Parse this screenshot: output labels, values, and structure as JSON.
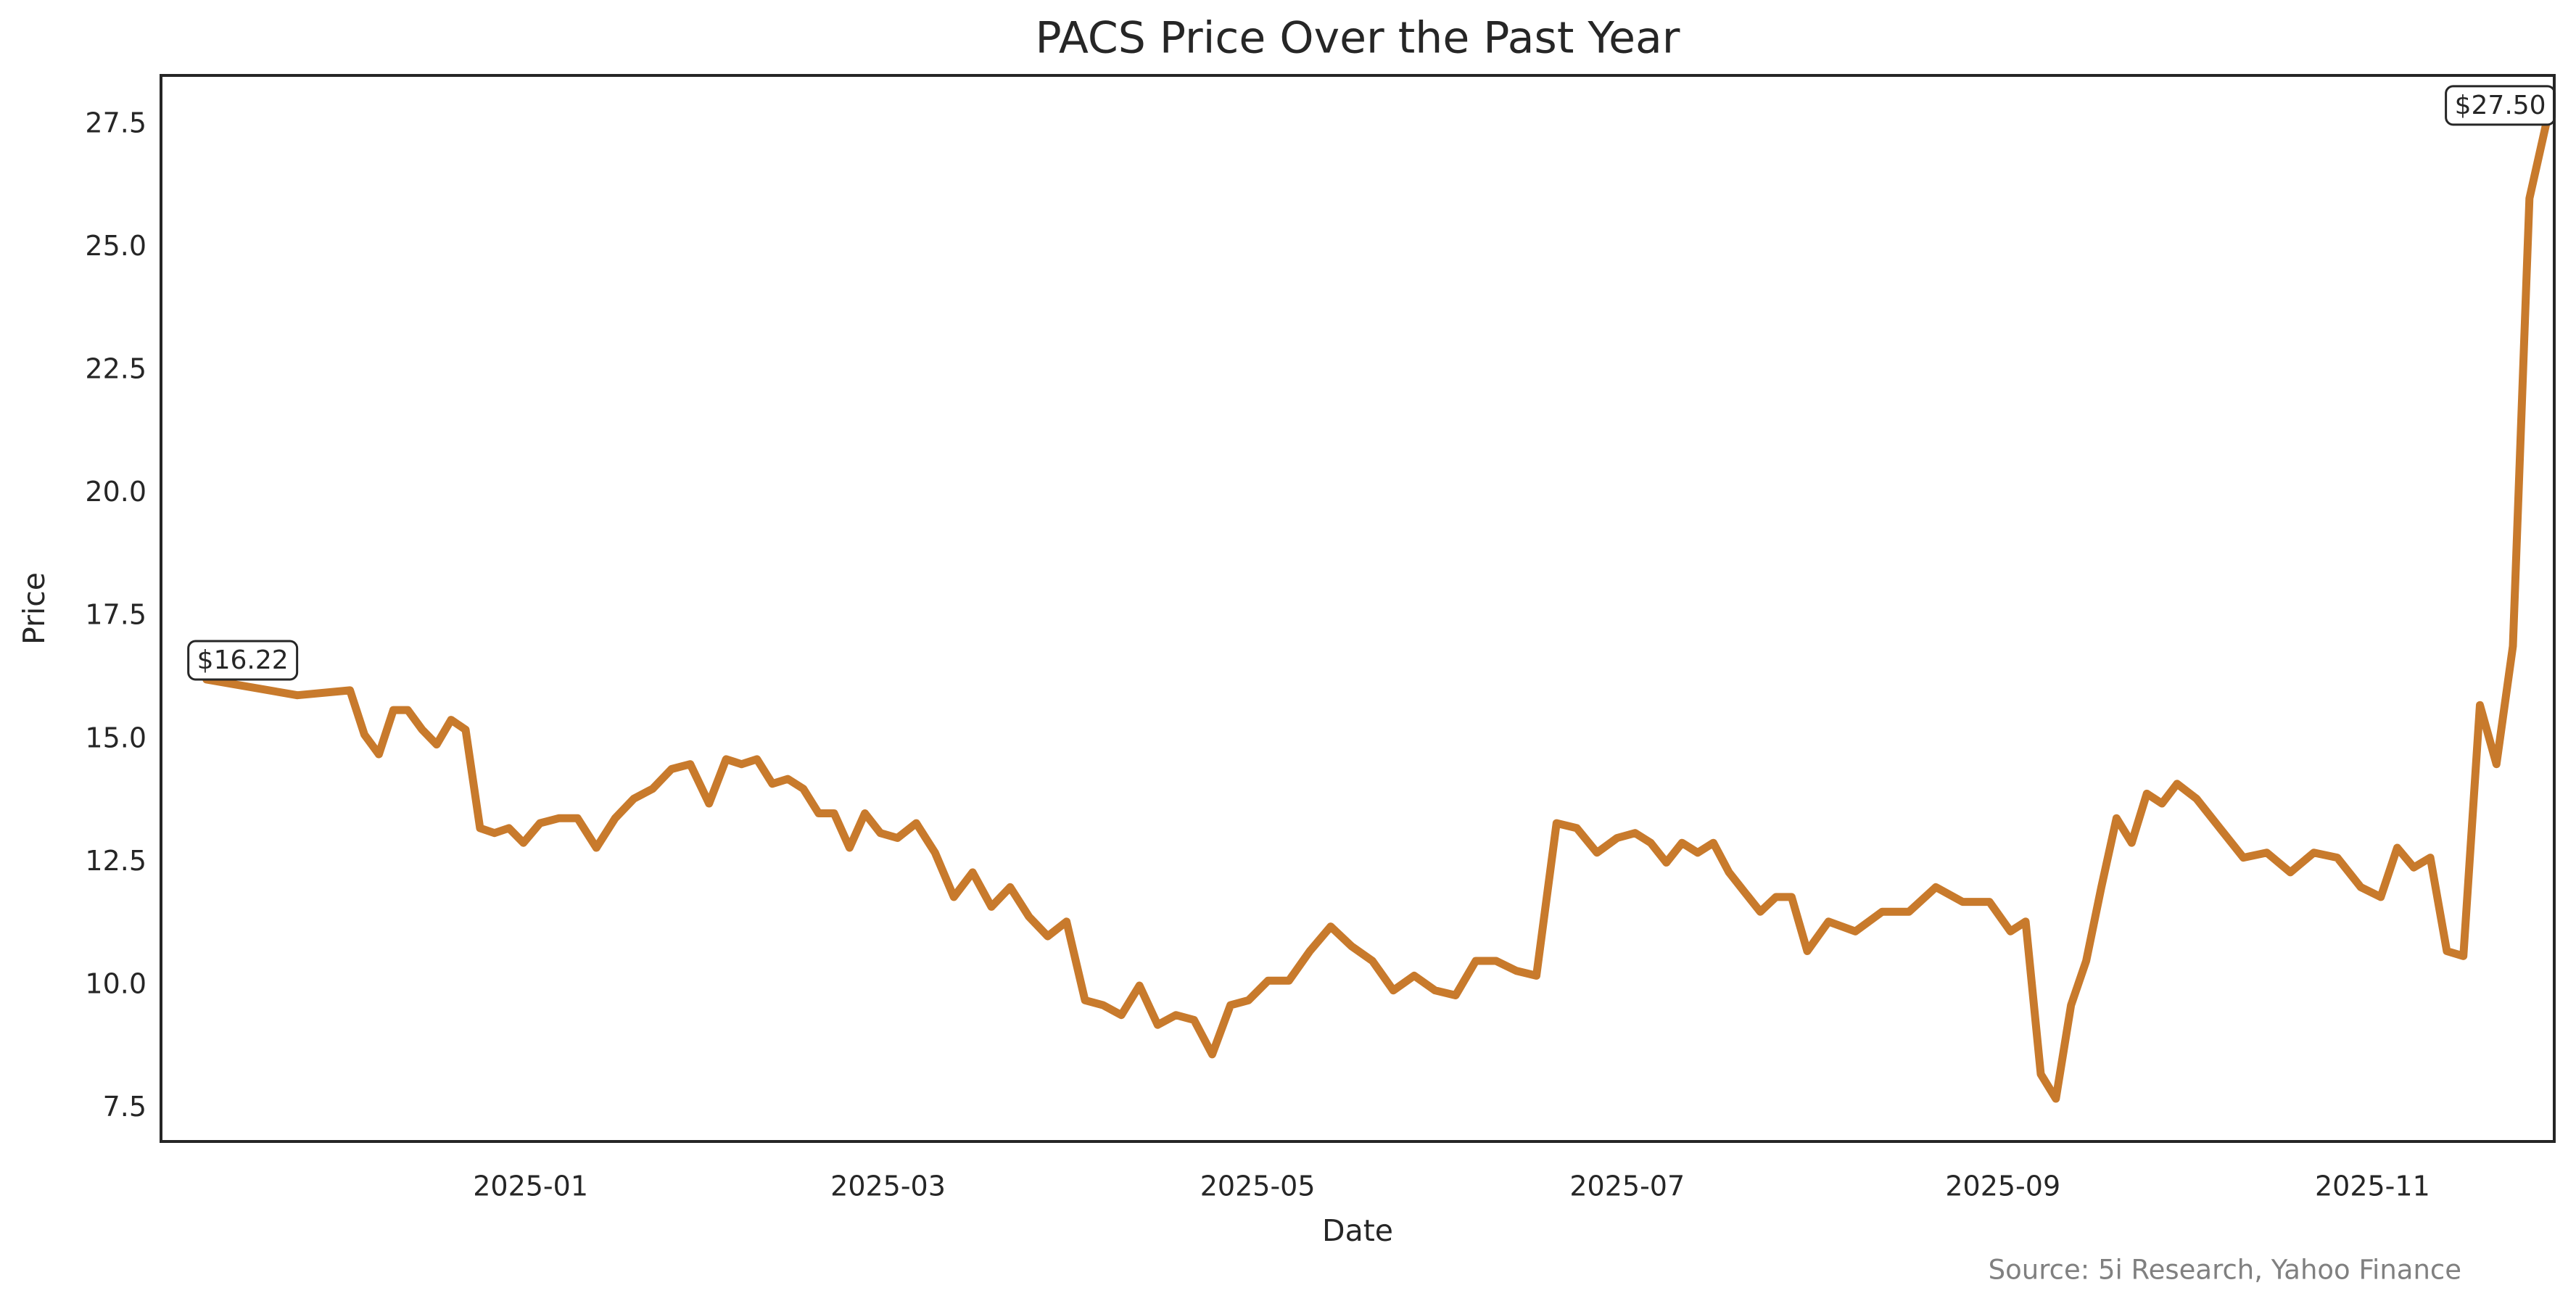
{
  "chart_data": {
    "type": "line",
    "title": "PACS Price Over the Past Year",
    "x_label": "Date",
    "y_label": "Price",
    "source": "Source: 5i Research, Yahoo Finance",
    "color": "#c87a2c",
    "x": [
      "2024-11",
      "2024-11",
      "2024-12",
      "2024-12",
      "2024-12",
      "2024-12",
      "2024-12",
      "2024-12",
      "2024-12",
      "2024-12",
      "2024-12",
      "2024-12",
      "2024-12",
      "2024-12",
      "2024-12",
      "2025-01",
      "2025-01",
      "2025-01",
      "2025-01",
      "2025-01",
      "2025-01",
      "2025-01",
      "2025-01",
      "2025-01",
      "2025-01",
      "2025-02",
      "2025-02",
      "2025-02",
      "2025-02",
      "2025-02",
      "2025-02",
      "2025-02",
      "2025-02",
      "2025-02",
      "2025-02",
      "2025-02",
      "2025-03",
      "2025-03",
      "2025-03",
      "2025-03",
      "2025-03",
      "2025-03",
      "2025-03",
      "2025-03",
      "2025-03",
      "2025-03",
      "2025-04",
      "2025-04",
      "2025-04",
      "2025-04",
      "2025-04",
      "2025-04",
      "2025-04",
      "2025-04",
      "2025-04",
      "2025-04",
      "2025-05",
      "2025-05",
      "2025-05",
      "2025-05",
      "2025-05",
      "2025-05",
      "2025-05",
      "2025-05",
      "2025-05",
      "2025-06",
      "2025-06",
      "2025-06",
      "2025-06",
      "2025-06",
      "2025-06",
      "2025-06",
      "2025-06",
      "2025-06",
      "2025-07",
      "2025-07",
      "2025-07",
      "2025-07",
      "2025-07",
      "2025-07",
      "2025-07",
      "2025-07",
      "2025-07",
      "2025-07",
      "2025-07",
      "2025-07",
      "2025-08",
      "2025-08",
      "2025-08",
      "2025-08",
      "2025-08",
      "2025-08",
      "2025-08",
      "2025-09",
      "2025-09",
      "2025-09",
      "2025-09",
      "2025-09",
      "2025-09",
      "2025-09",
      "2025-09",
      "2025-09",
      "2025-09",
      "2025-09",
      "2025-09",
      "2025-10",
      "2025-10",
      "2025-10",
      "2025-10",
      "2025-10",
      "2025-10",
      "2025-10",
      "2025-10",
      "2025-11",
      "2025-11",
      "2025-11",
      "2025-11",
      "2025-11",
      "2025-11",
      "2025-11",
      "2025-11",
      "2025-11",
      "2025-11",
      "2025-11"
    ],
    "values": [
      16.22,
      15.9,
      16.0,
      15.1,
      14.7,
      15.6,
      15.6,
      15.2,
      14.9,
      15.4,
      15.2,
      13.2,
      13.1,
      13.2,
      12.9,
      13.3,
      13.4,
      13.4,
      12.8,
      13.4,
      13.8,
      14.0,
      14.4,
      14.5,
      13.7,
      14.6,
      14.5,
      14.6,
      14.1,
      14.2,
      14.0,
      13.5,
      13.5,
      12.8,
      13.5,
      13.1,
      13.0,
      13.3,
      12.7,
      11.8,
      12.3,
      11.6,
      12.0,
      11.4,
      11.0,
      11.3,
      9.7,
      9.6,
      9.4,
      10.0,
      9.2,
      9.4,
      9.3,
      8.6,
      9.6,
      9.7,
      10.1,
      10.1,
      10.7,
      11.2,
      10.8,
      10.5,
      9.9,
      10.2,
      9.9,
      9.8,
      10.5,
      10.5,
      10.3,
      10.2,
      13.3,
      13.2,
      12.7,
      13.0,
      13.1,
      12.9,
      12.5,
      12.9,
      12.7,
      12.9,
      12.3,
      11.9,
      11.5,
      11.8,
      11.8,
      10.7,
      11.3,
      11.1,
      11.5,
      11.5,
      12.0,
      11.7,
      11.7,
      11.1,
      11.3,
      8.2,
      7.7,
      9.6,
      10.5,
      12.0,
      13.4,
      12.9,
      13.9,
      13.7,
      14.1,
      13.8,
      13.2,
      12.6,
      12.7,
      12.3,
      12.7,
      12.6,
      12.0,
      11.8,
      12.8,
      12.4,
      12.6,
      10.7,
      10.6,
      15.7,
      14.5,
      16.9,
      26.0,
      27.5
    ],
    "value_labels": [
      "$16.22",
      null,
      null,
      null,
      null,
      null,
      null,
      null,
      null,
      null,
      null,
      null,
      null,
      null,
      null,
      null,
      null,
      null,
      null,
      null,
      null,
      null,
      null,
      null,
      null,
      null,
      null,
      null,
      null,
      null,
      null,
      null,
      null,
      null,
      null,
      null,
      null,
      null,
      null,
      null,
      null,
      null,
      null,
      null,
      null,
      null,
      null,
      null,
      null,
      null,
      null,
      null,
      null,
      null,
      null,
      null,
      null,
      null,
      null,
      null,
      null,
      null,
      null,
      null,
      null,
      null,
      null,
      null,
      null,
      null,
      null,
      null,
      null,
      null,
      null,
      null,
      null,
      null,
      null,
      null,
      null,
      null,
      null,
      null,
      null,
      null,
      null,
      null,
      null,
      null,
      null,
      null,
      null,
      null,
      null,
      null,
      null,
      null,
      null,
      null,
      null,
      null,
      null,
      null,
      null,
      null,
      null,
      null,
      null,
      null,
      null,
      null,
      null,
      null,
      null,
      null,
      null,
      null,
      null,
      null,
      null,
      null,
      null,
      "$27.50"
    ],
    "xlim": [
      "2024-11",
      "2025-12"
    ],
    "xticks": [
      "2025-01",
      "2025-03",
      "2025-05",
      "2025-07",
      "2025-09",
      "2025-11"
    ],
    "ylim": [
      6.83,
      28.5
    ],
    "yticks": [
      7.5,
      {
        "value": 10,
        "label": "10.0"
      },
      12.5,
      {
        "value": 15,
        "label": "15.0"
      },
      17.5,
      {
        "value": 20,
        "label": "20.0"
      },
      22.5,
      {
        "value": 25,
        "label": "25.0"
      },
      27.5
    ],
    "grid": false
  }
}
